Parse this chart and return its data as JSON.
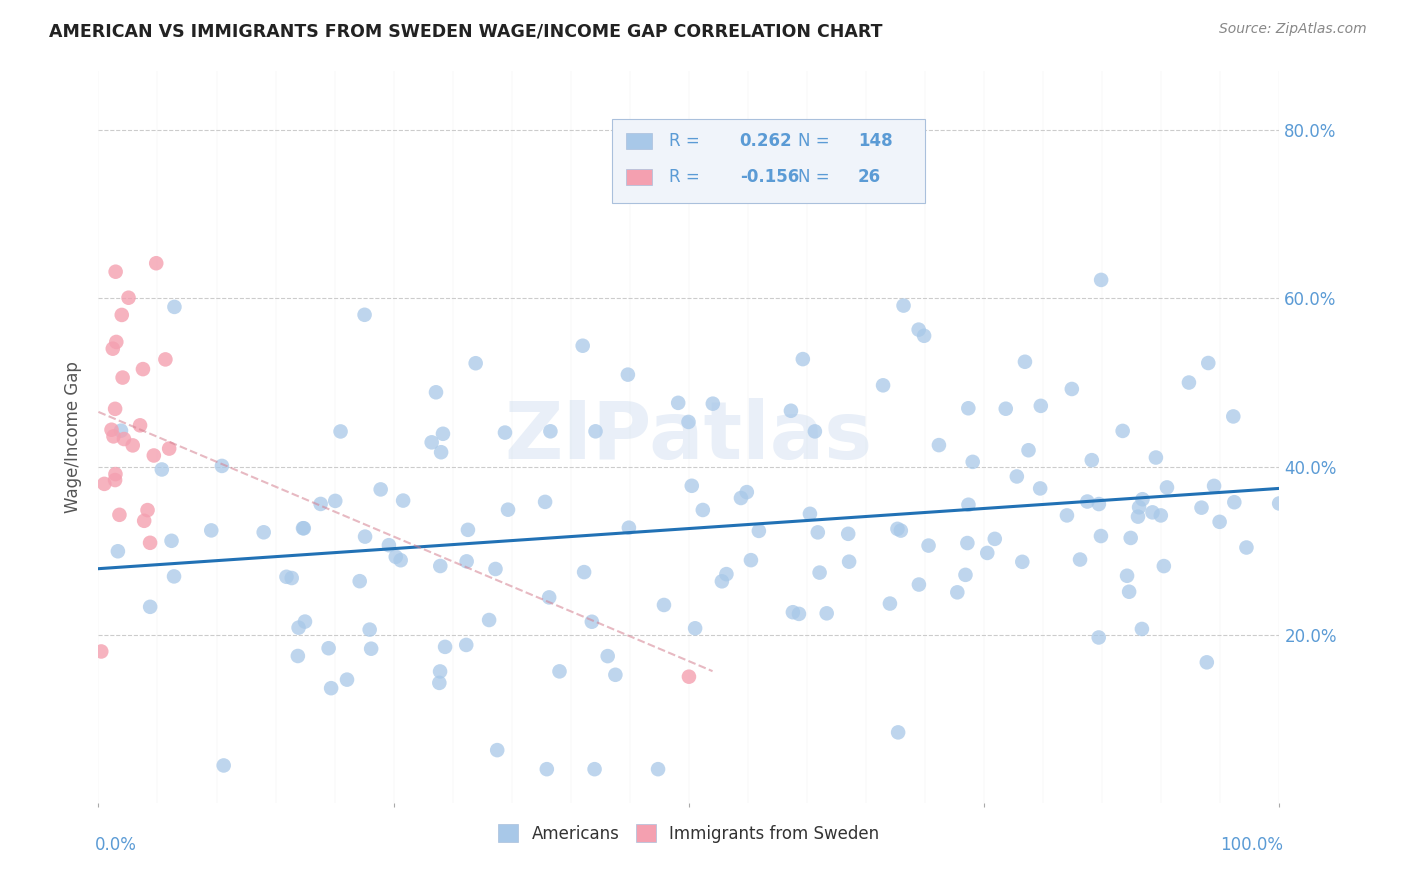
{
  "title": "AMERICAN VS IMMIGRANTS FROM SWEDEN WAGE/INCOME GAP CORRELATION CHART",
  "source": "Source: ZipAtlas.com",
  "ylabel": "Wage/Income Gap",
  "legend_americans": "Americans",
  "legend_immigrants": "Immigrants from Sweden",
  "R_americans": 0.262,
  "N_americans": 148,
  "R_immigrants": -0.156,
  "N_immigrants": 26,
  "blue_scatter_color": "#a8c8e8",
  "blue_line_color": "#2171b5",
  "pink_scatter_color": "#f4a0b0",
  "pink_line_color": "#d48090",
  "watermark": "ZIPatlas",
  "title_color": "#222222",
  "source_color": "#888888",
  "tick_color": "#5b9bd5",
  "ylabel_color": "#555555",
  "legend_text_color": "#5b9bd5",
  "legend_bg": "#f0f4fa",
  "legend_border": "#aac0dc",
  "grid_color": "#cccccc",
  "ylim": [
    0.0,
    0.87
  ],
  "yticks": [
    0.2,
    0.4,
    0.6,
    0.8
  ],
  "ytick_labels": [
    "20.0%",
    "40.0%",
    "60.0%",
    "80.0%"
  ],
  "xlim": [
    0.0,
    1.0
  ],
  "xtick_left": "0.0%",
  "xtick_right": "100.0%"
}
